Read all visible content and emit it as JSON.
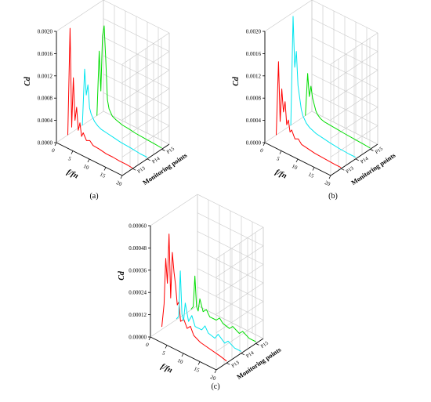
{
  "figure": {
    "panels": [
      "(a)",
      "(b)",
      "(c)"
    ]
  },
  "colors": {
    "P13": "#ff0000",
    "P14": "#00e5ee",
    "P15": "#00dd00",
    "axis": "#000000",
    "grid": "#c8c8c8"
  },
  "chart_data": [
    {
      "panel": "(a)",
      "type": "line",
      "projection": "3d-waterfall",
      "xlabel": "f/f_n",
      "ylabel": "C_d",
      "zlabel": "Monitoring points",
      "x_ticks": [
        "0",
        "5",
        "10",
        "15",
        "20"
      ],
      "xlim": [
        0,
        20
      ],
      "y_ticks": [
        "0.0000",
        "0.0004",
        "0.0008",
        "0.0012",
        "0.0016",
        "0.0020"
      ],
      "ylim": [
        0,
        0.002
      ],
      "z_ticks": [
        "P13",
        "P14",
        "P15"
      ],
      "grid": true,
      "series": [
        {
          "name": "P13",
          "x": [
            0.3,
            1.0,
            1.5,
            2.0,
            2.5,
            3.0,
            3.5,
            4.0,
            4.5,
            5.0,
            6.0,
            7.0,
            8.0,
            10.0,
            12.0,
            14.0,
            16.0,
            18.0,
            20.0
          ],
          "values": [
            2e-05,
            0.00196,
            0.0002,
            0.0011,
            0.00035,
            0.0006,
            0.0002,
            0.00035,
            0.00012,
            0.0002,
            9e-05,
            0.00012,
            6e-05,
            5e-05,
            3e-05,
            3e-05,
            2e-05,
            2e-05,
            1e-05
          ]
        },
        {
          "name": "P14",
          "x": [
            0.3,
            1.0,
            1.5,
            2.0,
            2.5,
            3.0,
            3.5,
            4.0,
            5.0,
            6.0,
            8.0,
            10.0,
            12.0,
            15.0,
            18.0,
            20.0
          ],
          "values": [
            2e-05,
            0.00105,
            0.0006,
            0.0008,
            0.0004,
            0.0003,
            0.00025,
            0.0002,
            0.00015,
            0.00012,
            0.0001,
            8e-05,
            6e-05,
            5e-05,
            3e-05,
            3e-05
          ]
        },
        {
          "name": "P15",
          "x": [
            0.3,
            1.0,
            1.5,
            2.0,
            2.5,
            3.0,
            3.5,
            4.0,
            5.0,
            6.0,
            8.0,
            10.0,
            12.0,
            15.0,
            18.0,
            20.0
          ],
          "values": [
            2e-05,
            0.0012,
            0.0005,
            0.0015,
            0.0017,
            0.0011,
            0.0004,
            0.00025,
            0.00015,
            0.00012,
            8e-05,
            7e-05,
            5e-05,
            4e-05,
            3e-05,
            2e-05
          ]
        }
      ]
    },
    {
      "panel": "(b)",
      "type": "line",
      "projection": "3d-waterfall",
      "xlabel": "f/f_n",
      "ylabel": "C_d",
      "zlabel": "Monitoring points",
      "x_ticks": [
        "0",
        "5",
        "10",
        "15",
        "20"
      ],
      "xlim": [
        0,
        20
      ],
      "y_ticks": [
        "0.0000",
        "0.0004",
        "0.0008",
        "0.0012",
        "0.0016",
        "0.0020"
      ],
      "ylim": [
        0,
        0.002
      ],
      "z_ticks": [
        "P13",
        "P14",
        "P15"
      ],
      "grid": true,
      "series": [
        {
          "name": "P13",
          "x": [
            0.3,
            1.0,
            1.5,
            2.0,
            2.5,
            3.0,
            3.5,
            4.0,
            4.5,
            5.0,
            6.0,
            7.0,
            8.0,
            10.0,
            12.0,
            15.0,
            18.0,
            20.0
          ],
          "values": [
            2e-05,
            0.00136,
            0.0003,
            0.0009,
            0.0005,
            0.0007,
            0.0003,
            0.0004,
            0.0002,
            0.00025,
            0.00012,
            0.00015,
            8e-05,
            6e-05,
            4e-05,
            3e-05,
            2e-05,
            2e-05
          ]
        },
        {
          "name": "P14",
          "x": [
            0.3,
            1.0,
            1.5,
            2.0,
            2.5,
            3.0,
            3.5,
            4.0,
            5.0,
            6.0,
            8.0,
            10.0,
            12.0,
            15.0,
            18.0,
            20.0
          ],
          "values": [
            2e-05,
            0.002,
            0.0011,
            0.0014,
            0.0008,
            0.0006,
            0.0004,
            0.0003,
            0.0002,
            0.00015,
            0.0001,
            8e-05,
            6e-05,
            4e-05,
            3e-05,
            3e-05
          ]
        },
        {
          "name": "P15",
          "x": [
            0.3,
            1.0,
            1.5,
            2.0,
            2.5,
            3.0,
            3.5,
            4.0,
            5.0,
            6.0,
            8.0,
            10.0,
            12.0,
            15.0,
            18.0,
            20.0
          ],
          "values": [
            2e-05,
            0.0008,
            0.0004,
            0.0006,
            0.0004,
            0.0003,
            0.0002,
            0.00015,
            0.0001,
            8e-05,
            7e-05,
            6e-05,
            5e-05,
            4e-05,
            3e-05,
            2e-05
          ]
        }
      ]
    },
    {
      "panel": "(c)",
      "type": "line",
      "projection": "3d-waterfall",
      "xlabel": "f/f_n",
      "ylabel": "C_d",
      "zlabel": "Monitoring points",
      "x_ticks": [
        "0",
        "5",
        "10",
        "15",
        "20"
      ],
      "xlim": [
        0,
        20
      ],
      "y_ticks": [
        "0.00000",
        "0.00012",
        "0.00024",
        "0.00036",
        "0.00048",
        "0.00060"
      ],
      "ylim": [
        0,
        0.0006
      ],
      "z_ticks": [
        "P13",
        "P14",
        "P15"
      ],
      "grid": true,
      "series": [
        {
          "name": "P13",
          "x": [
            0.3,
            1.0,
            1.5,
            2.0,
            2.5,
            3.0,
            3.5,
            4.0,
            4.5,
            5.0,
            5.5,
            6.0,
            7.0,
            8.0,
            9.0,
            10.0,
            12.0,
            15.0,
            18.0,
            20.0
          ],
          "values": [
            2e-05,
            0.00015,
            0.0004,
            0.00027,
            0.00054,
            0.0002,
            0.00045,
            0.00035,
            0.00028,
            0.00018,
            0.0002,
            0.0001,
            0.00012,
            8e-05,
            0.0001,
            6e-05,
            4e-05,
            3e-05,
            2e-05,
            1e-05
          ]
        },
        {
          "name": "P14",
          "x": [
            0.3,
            1.0,
            1.5,
            2.0,
            2.5,
            3.0,
            4.0,
            5.0,
            6.0,
            8.0,
            9.0,
            10.0,
            12.0,
            13.0,
            15.0,
            16.0,
            18.0,
            20.0
          ],
          "values": [
            1e-05,
            3e-05,
            0.00028,
            5e-05,
            2e-05,
            0.00012,
            3e-05,
            7e-05,
            2e-05,
            2e-05,
            5e-05,
            2e-05,
            1e-05,
            4e-05,
            1e-05,
            3e-05,
            1e-05,
            1e-05
          ]
        },
        {
          "name": "P15",
          "x": [
            0.3,
            1.0,
            1.5,
            2.0,
            2.5,
            3.0,
            4.0,
            5.0,
            6.0,
            8.0,
            9.0,
            10.0,
            12.0,
            13.0,
            15.0,
            16.0,
            18.0,
            20.0
          ],
          "values": [
            1e-05,
            3e-05,
            0.0002,
            4e-05,
            2e-05,
            9e-05,
            3e-05,
            5e-05,
            2e-05,
            2e-05,
            4e-05,
            2e-05,
            1e-05,
            3e-05,
            1e-05,
            3e-05,
            1e-05,
            1e-05
          ]
        }
      ]
    }
  ]
}
